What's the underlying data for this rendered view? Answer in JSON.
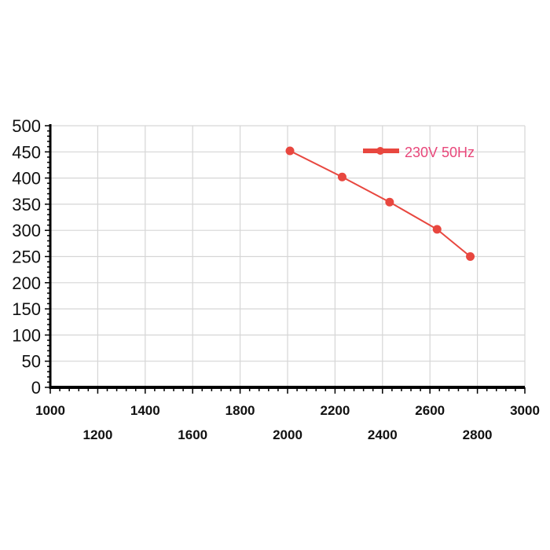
{
  "chart_data": {
    "type": "line",
    "title": "",
    "xlabel": "",
    "ylabel": "",
    "xlim": [
      1000,
      3000
    ],
    "ylim": [
      0,
      500
    ],
    "x_ticks": [
      1000,
      1200,
      1400,
      1600,
      1800,
      2000,
      2200,
      2400,
      2600,
      2800,
      3000
    ],
    "y_ticks": [
      0,
      50,
      100,
      150,
      200,
      250,
      300,
      350,
      400,
      450,
      500
    ],
    "grid": true,
    "legend_position": "top-right",
    "series": [
      {
        "name": "230V 50Hz",
        "color": "#e8473f",
        "x": [
          2010,
          2230,
          2430,
          2630,
          2770
        ],
        "y": [
          452,
          402,
          354,
          302,
          250
        ]
      }
    ]
  },
  "colors": {
    "grid": "#d6d6d6",
    "axis": "#000000",
    "legend_text": "#e8477a"
  }
}
